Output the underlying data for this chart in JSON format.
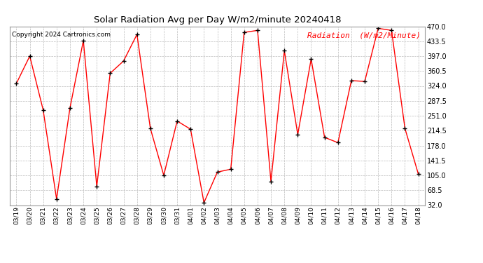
{
  "title": "Solar Radiation Avg per Day W/m2/minute 20240418",
  "copyright": "Copyright 2024 Cartronics.com",
  "legend_label": "Radiation  (W/m2/Minute)",
  "line_color": "red",
  "marker_color": "black",
  "background_color": "#ffffff",
  "grid_color": "#bbbbbb",
  "dates": [
    "03/19",
    "03/20",
    "03/21",
    "03/22",
    "03/23",
    "03/24",
    "03/25",
    "03/26",
    "03/27",
    "03/28",
    "03/29",
    "03/30",
    "03/31",
    "04/01",
    "04/02",
    "04/03",
    "04/04",
    "04/05",
    "04/06",
    "04/07",
    "04/08",
    "04/09",
    "04/10",
    "04/11",
    "04/12",
    "04/13",
    "04/14",
    "04/15",
    "04/16",
    "04/17",
    "04/18"
  ],
  "values": [
    330,
    397,
    265,
    47,
    270,
    435,
    78,
    355,
    385,
    450,
    220,
    105,
    238,
    218,
    38,
    113,
    120,
    455,
    460,
    90,
    410,
    205,
    390,
    198,
    185,
    337,
    335,
    465,
    460,
    220,
    108
  ],
  "ylim": [
    32.0,
    470.0
  ],
  "yticks": [
    32.0,
    68.5,
    105.0,
    141.5,
    178.0,
    214.5,
    251.0,
    287.5,
    324.0,
    360.5,
    397.0,
    433.5,
    470.0
  ],
  "figsize": [
    6.9,
    3.75
  ],
  "dpi": 100
}
